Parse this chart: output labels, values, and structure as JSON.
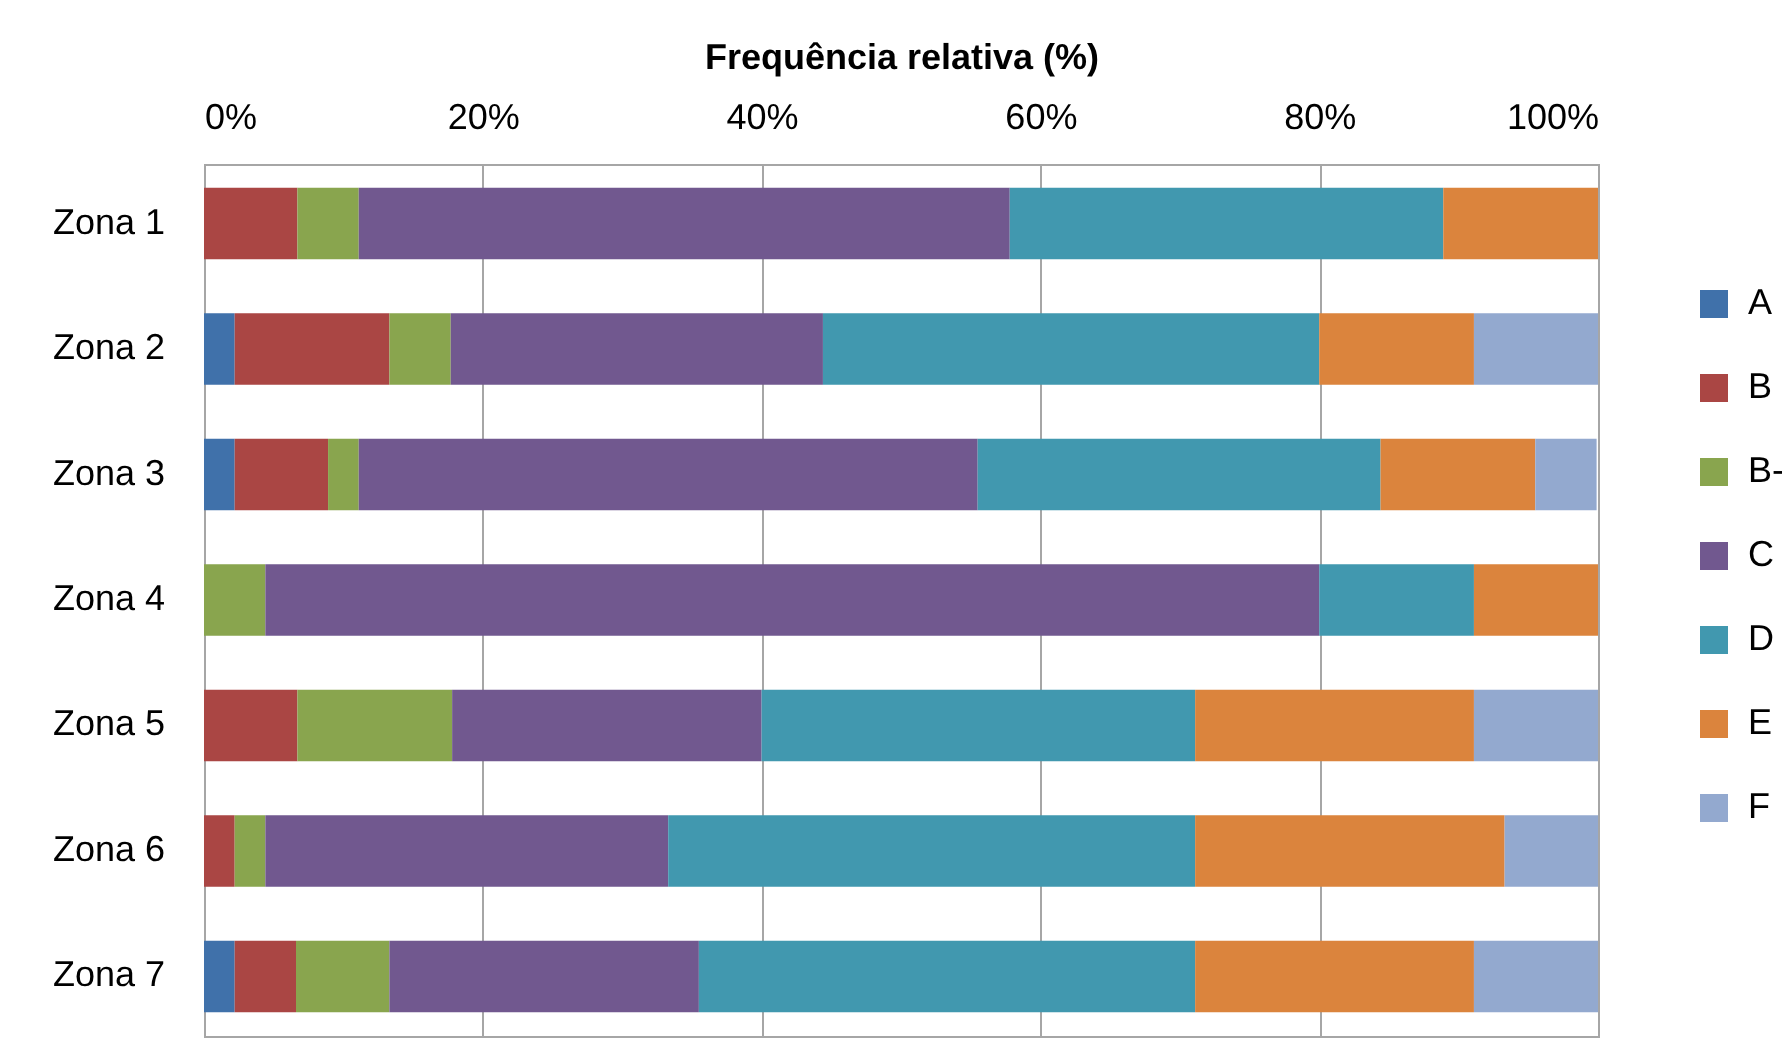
{
  "chart_data": {
    "type": "bar",
    "orientation": "horizontal",
    "stacked": true,
    "xlabel": "Frequência relativa (%)",
    "categories": [
      "Zona 1",
      "Zona 2",
      "Zona 3",
      "Zona 4",
      "Zona 5",
      "Zona 6",
      "Zona 7"
    ],
    "series": [
      {
        "name": "A",
        "color": "#4071aa",
        "values": [
          0,
          2.2,
          2.2,
          0,
          0,
          0,
          2.2
        ]
      },
      {
        "name": "B",
        "color": "#aa4644",
        "values": [
          6.7,
          11.1,
          6.7,
          0,
          6.7,
          2.2,
          4.4
        ]
      },
      {
        "name": "B-",
        "color": "#89a54e",
        "values": [
          4.4,
          4.4,
          2.2,
          4.4,
          11.1,
          2.2,
          6.7
        ]
      },
      {
        "name": "C",
        "color": "#71588f",
        "values": [
          46.7,
          26.7,
          44.4,
          75.6,
          22.2,
          28.9,
          22.2
        ]
      },
      {
        "name": "D",
        "color": "#4198af",
        "values": [
          31.1,
          35.6,
          28.9,
          11.1,
          31.1,
          37.8,
          35.6
        ]
      },
      {
        "name": "E",
        "color": "#db843d",
        "values": [
          11.1,
          11.1,
          11.1,
          8.9,
          20,
          22.2,
          20
        ]
      },
      {
        "name": "F",
        "color": "#93a9cf",
        "values": [
          0,
          8.9,
          4.4,
          0,
          8.9,
          6.7,
          8.9
        ]
      }
    ],
    "xlim": [
      0,
      100
    ],
    "xticks": [
      {
        "value": 0,
        "label": "0%"
      },
      {
        "value": 20,
        "label": "20%"
      },
      {
        "value": 40,
        "label": "40%"
      },
      {
        "value": 60,
        "label": "60%"
      },
      {
        "value": 80,
        "label": "80%"
      },
      {
        "value": 100,
        "label": "100%"
      }
    ],
    "grid": "x",
    "legend": "right"
  }
}
